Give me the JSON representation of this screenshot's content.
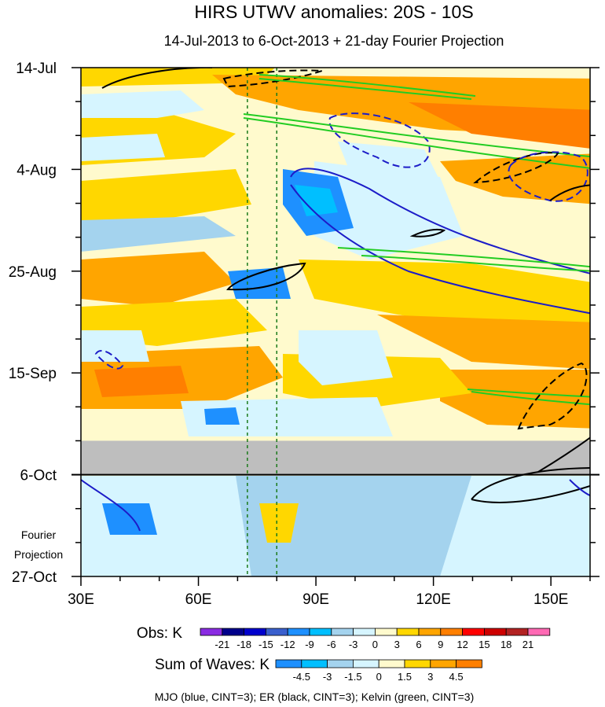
{
  "chart_data": {
    "type": "heatmap",
    "title": "HIRS UTWV anomalies: 20S - 10S",
    "subtitle": "14-Jul-2013 to 6-Oct-2013 + 21-day Fourier Projection",
    "x_axis": {
      "range": [
        30,
        160
      ],
      "units": "degrees longitude East",
      "ticks": [
        {
          "value": 30,
          "label": "30E"
        },
        {
          "value": 60,
          "label": "60E"
        },
        {
          "value": 90,
          "label": "90E"
        },
        {
          "value": 120,
          "label": "120E"
        },
        {
          "value": 150,
          "label": "150E"
        }
      ]
    },
    "y_axis": {
      "range_days": [
        0,
        105
      ],
      "direction": "time increases downward",
      "ticks": [
        {
          "day": 0,
          "label": "14-Jul"
        },
        {
          "day": 21,
          "label": "4-Aug"
        },
        {
          "day": 42,
          "label": "25-Aug"
        },
        {
          "day": 63,
          "label": "15-Sep"
        },
        {
          "day": 84,
          "label": "6-Oct"
        },
        {
          "day": 105,
          "label": "27-Oct"
        }
      ],
      "minor_tick_step_days": 7
    },
    "projection_label_lines": [
      "Fourier",
      "Projection"
    ],
    "missing_band_days": [
      77,
      84
    ],
    "projection_start_day": 84,
    "reference_longitudes": [
      72.5,
      80
    ],
    "obs_colorbar": {
      "label": "Obs: K",
      "levels": [
        "-21",
        "-18",
        "-15",
        "-12",
        "-9",
        "-6",
        "-3",
        "0",
        "3",
        "6",
        "9",
        "12",
        "15",
        "18",
        "21"
      ],
      "colors": [
        "#8a2be2",
        "#00008b",
        "#0000cd",
        "#3a5fcd",
        "#1e90ff",
        "#00bfff",
        "#a4d3ee",
        "#d6f5ff",
        "#fffacd",
        "#ffd700",
        "#ffa500",
        "#ff7f00",
        "#ff0000",
        "#cd0000",
        "#b22222",
        "#ff69b4"
      ]
    },
    "waves_colorbar": {
      "label": "Sum of Waves: K",
      "levels": [
        "-4.5",
        "-3",
        "-1.5",
        "0",
        "1.5",
        "3",
        "4.5"
      ],
      "colors": [
        "#1e90ff",
        "#00bfff",
        "#a4d3ee",
        "#d6f5ff",
        "#fffacd",
        "#ffd700",
        "#ffa500",
        "#ff7f00"
      ]
    },
    "footer": "MJO (blue, CINT=3); ER (black, CINT=3); Kelvin (green, CINT=3)",
    "contours": {
      "mjo": {
        "color": "#1c1cc8"
      },
      "er": {
        "color": "#000000"
      },
      "kelvin": {
        "color": "#22cc22"
      }
    }
  }
}
